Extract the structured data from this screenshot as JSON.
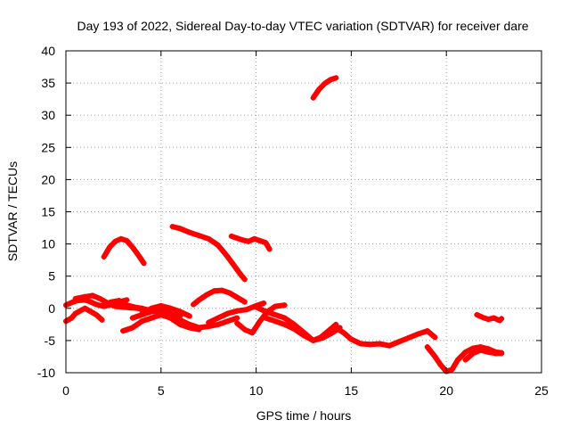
{
  "chart_data": {
    "type": "scatter",
    "title": "Day 193 of 2022, Sidereal Day-to-day VTEC variation (SDTVAR) for receiver dare",
    "xlabel": "GPS time / hours",
    "ylabel": "SDTVAR / TECUs",
    "xlim": [
      0,
      25
    ],
    "ylim": [
      -10,
      40
    ],
    "xticks": [
      0,
      5,
      10,
      15,
      20,
      25
    ],
    "yticks": [
      -10,
      -5,
      0,
      5,
      10,
      15,
      20,
      25,
      30,
      35,
      40
    ],
    "grid": true,
    "color": "#ff0000",
    "series": [
      {
        "name": "s1",
        "x": [
          0.0,
          0.3,
          0.6,
          1.0,
          1.3,
          1.6,
          2.0,
          2.4,
          2.8,
          3.2
        ],
        "y": [
          0.5,
          0.9,
          1.2,
          1.3,
          1.0,
          0.6,
          0.3,
          0.6,
          1.0,
          1.3
        ]
      },
      {
        "name": "s2",
        "x": [
          0.0,
          0.3,
          0.5,
          0.8,
          1.0,
          1.3,
          1.6,
          1.9
        ],
        "y": [
          -2.0,
          -1.5,
          -0.8,
          -0.3,
          0.0,
          -0.5,
          -1.0,
          -1.8
        ]
      },
      {
        "name": "s3",
        "x": [
          0.5,
          1.0,
          1.4,
          1.8,
          2.2,
          2.6,
          3.0,
          3.4,
          3.8,
          4.2,
          4.6
        ],
        "y": [
          1.5,
          1.8,
          2.0,
          1.5,
          0.8,
          0.3,
          0.2,
          0.1,
          0.0,
          -0.3,
          -0.5
        ]
      },
      {
        "name": "s4",
        "x": [
          2.0,
          2.4,
          2.8,
          3.2,
          3.6,
          4.0,
          4.4,
          4.8,
          5.2,
          5.6,
          6.0
        ],
        "y": [
          0.6,
          1.0,
          1.2,
          0.5,
          0.2,
          0.0,
          -0.3,
          -0.5,
          -0.8,
          -1.0,
          -1.2
        ]
      },
      {
        "name": "s5",
        "x": [
          2.0,
          2.3,
          2.6,
          2.9,
          3.2,
          3.5,
          3.8,
          4.1
        ],
        "y": [
          8.0,
          9.5,
          10.4,
          10.8,
          10.5,
          9.5,
          8.3,
          7.0
        ]
      },
      {
        "name": "s6",
        "x": [
          3.0,
          3.5,
          4.0,
          4.5,
          5.0,
          5.5,
          6.0,
          6.5,
          7.0
        ],
        "y": [
          -3.5,
          -3.0,
          -2.0,
          -1.5,
          -1.0,
          -1.5,
          -2.5,
          -3.0,
          -3.3
        ]
      },
      {
        "name": "s7",
        "x": [
          3.5,
          4.0,
          4.5,
          5.0,
          5.5,
          6.0,
          6.5,
          7.0,
          7.5,
          8.0,
          8.5,
          9.0
        ],
        "y": [
          -1.5,
          -1.0,
          -0.5,
          0.0,
          -0.8,
          -1.8,
          -2.5,
          -3.0,
          -2.8,
          -2.5,
          -2.0,
          -1.5
        ]
      },
      {
        "name": "s8",
        "x": [
          4.0,
          4.5,
          5.0,
          5.5,
          6.0,
          6.5
        ],
        "y": [
          -0.8,
          0.0,
          0.4,
          0.0,
          -0.5,
          -1.2
        ]
      },
      {
        "name": "s9",
        "x": [
          5.6,
          6.0,
          6.5,
          7.0,
          7.5,
          8.0,
          8.5,
          8.8,
          9.2,
          9.4
        ],
        "y": [
          12.7,
          12.4,
          11.8,
          11.3,
          10.8,
          9.8,
          8.0,
          6.8,
          5.2,
          4.5
        ]
      },
      {
        "name": "s10",
        "x": [
          6.7,
          7.0,
          7.4,
          7.8,
          8.2,
          8.6,
          9.0,
          9.4
        ],
        "y": [
          0.6,
          1.3,
          2.1,
          2.7,
          2.8,
          2.4,
          1.7,
          1.0
        ]
      },
      {
        "name": "s11",
        "x": [
          7.5,
          8.0,
          8.5,
          9.0,
          9.5,
          10.0,
          10.4
        ],
        "y": [
          -2.2,
          -1.5,
          -0.8,
          -0.4,
          -0.2,
          0.4,
          0.8
        ]
      },
      {
        "name": "s12",
        "x": [
          8.7,
          9.0,
          9.3,
          9.6,
          9.9,
          10.2,
          10.5,
          10.7
        ],
        "y": [
          11.2,
          10.9,
          10.6,
          10.4,
          10.8,
          10.5,
          10.2,
          9.2
        ]
      },
      {
        "name": "s13",
        "x": [
          9.0,
          9.4,
          9.8,
          10.2,
          10.6,
          11.0,
          11.5
        ],
        "y": [
          -2.3,
          -3.3,
          -3.8,
          -2.0,
          -0.5,
          0.3,
          0.5
        ]
      },
      {
        "name": "s14",
        "x": [
          10.0,
          10.5,
          11.0,
          11.5,
          12.0,
          12.4,
          12.8,
          13.0,
          13.4,
          13.8,
          14.2
        ],
        "y": [
          0.2,
          -0.5,
          -1.0,
          -1.5,
          -2.5,
          -3.5,
          -4.5,
          -5.0,
          -4.5,
          -3.5,
          -2.5
        ]
      },
      {
        "name": "s15",
        "x": [
          10.5,
          11.0,
          11.5,
          12.0,
          12.5,
          13.0,
          13.5,
          14.0,
          14.4
        ],
        "y": [
          -1.5,
          -2.0,
          -2.5,
          -3.2,
          -4.2,
          -5.0,
          -4.6,
          -3.8,
          -3.0
        ]
      },
      {
        "name": "s16",
        "x": [
          13.0,
          13.3,
          13.6,
          13.9,
          14.2
        ],
        "y": [
          32.7,
          34.0,
          34.9,
          35.5,
          35.8
        ]
      },
      {
        "name": "s17",
        "x": [
          14.2,
          14.6,
          15.0,
          15.5,
          16.0,
          16.5,
          17.0,
          17.5,
          18.0,
          18.5,
          19.0,
          19.4
        ],
        "y": [
          -3.0,
          -3.8,
          -4.8,
          -5.5,
          -5.6,
          -5.5,
          -5.8,
          -5.2,
          -4.6,
          -4.0,
          -3.5,
          -4.5
        ]
      },
      {
        "name": "s18",
        "x": [
          19.0,
          19.4,
          19.7,
          20.0,
          20.3,
          20.6,
          21.0,
          21.4,
          21.8,
          22.2,
          22.6,
          22.9
        ],
        "y": [
          -6.0,
          -7.5,
          -8.8,
          -9.8,
          -9.5,
          -8.0,
          -6.8,
          -6.2,
          -6.0,
          -6.3,
          -6.8,
          -6.9
        ]
      },
      {
        "name": "s19",
        "x": [
          21.0,
          21.4,
          21.8,
          22.2,
          22.6,
          22.9
        ],
        "y": [
          -8.0,
          -7.0,
          -6.5,
          -6.8,
          -7.0,
          -7.0
        ]
      },
      {
        "name": "s20",
        "x": [
          21.6,
          21.9,
          22.2,
          22.5,
          22.8,
          22.9
        ],
        "y": [
          -1.0,
          -1.4,
          -1.7,
          -1.5,
          -1.9,
          -1.6
        ]
      }
    ]
  }
}
